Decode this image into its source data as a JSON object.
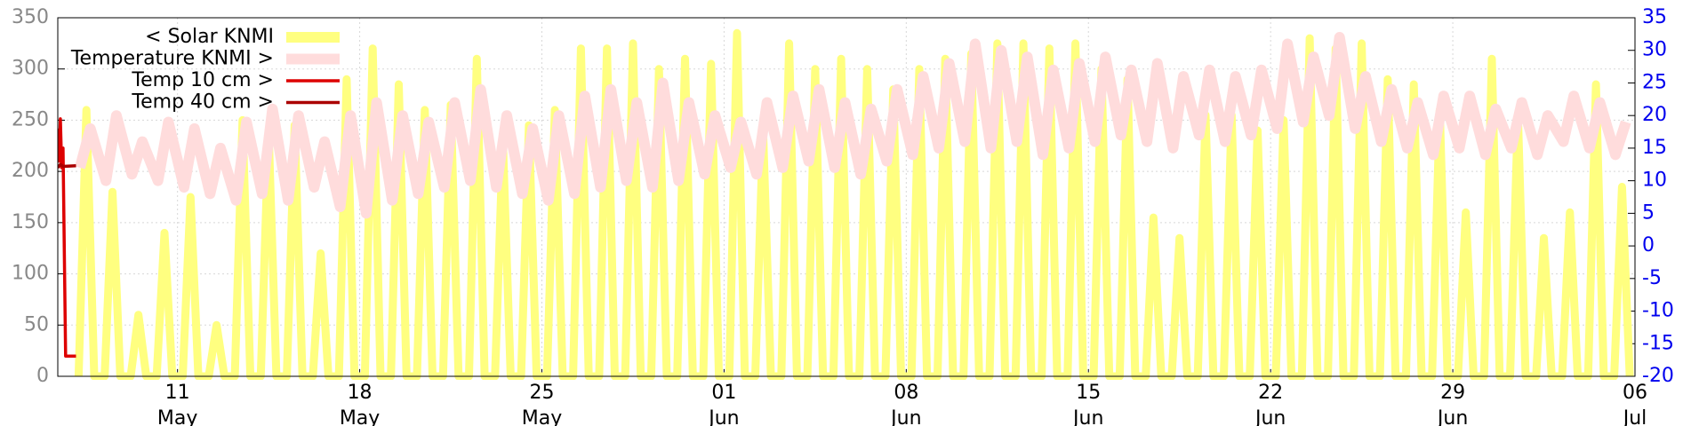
{
  "chart_data": {
    "type": "line",
    "grid": true,
    "legend": "upper left",
    "xlim": [
      6.4,
      67
    ],
    "xticks": [
      {
        "value": 11,
        "label": "11\nMay"
      },
      {
        "value": 18,
        "label": "18\nMay"
      },
      {
        "value": 25,
        "label": "25\nMay"
      },
      {
        "value": 32,
        "label": "01\nJun"
      },
      {
        "value": 39,
        "label": "08\nJun"
      },
      {
        "value": 46,
        "label": "15\nJun"
      },
      {
        "value": 53,
        "label": "22\nJun"
      },
      {
        "value": 60,
        "label": "29\nJun"
      },
      {
        "value": 67,
        "label": "06\nJul"
      }
    ],
    "ylim": [
      0,
      350
    ],
    "yticks": [
      0,
      50,
      100,
      150,
      200,
      250,
      300,
      350
    ],
    "y2lim": [
      -20,
      35
    ],
    "y2ticks": [
      -20,
      -15,
      -10,
      -5,
      0,
      5,
      10,
      15,
      20,
      25,
      30,
      35
    ],
    "series": [
      {
        "name": "< Solar KNMI",
        "color": "#ffff80",
        "axis": "y",
        "x": [
          7.2,
          7.5,
          7.8,
          8.2,
          8.5,
          8.8,
          9.2,
          9.5,
          9.8,
          10.2,
          10.5,
          10.8,
          11.2,
          11.5,
          11.8,
          12.2,
          12.5,
          12.8,
          13.2,
          13.5,
          13.8,
          14.2,
          14.5,
          14.8,
          15.2,
          15.5,
          15.8,
          16.2,
          16.5,
          16.8,
          17.2,
          17.5,
          17.8,
          18.2,
          18.5,
          18.8,
          19.2,
          19.5,
          19.8,
          20.2,
          20.5,
          20.8,
          21.2,
          21.5,
          21.8,
          22.2,
          22.5,
          22.8,
          23.2,
          23.5,
          23.8,
          24.2,
          24.5,
          24.8,
          25.2,
          25.5,
          25.8,
          26.2,
          26.5,
          26.8,
          27.2,
          27.5,
          27.8,
          28.2,
          28.5,
          28.8,
          29.2,
          29.5,
          29.8,
          30.2,
          30.5,
          30.8,
          31.2,
          31.5,
          31.8,
          32.2,
          32.5,
          32.8,
          33.2,
          33.5,
          33.8,
          34.2,
          34.5,
          34.8,
          35.2,
          35.5,
          35.8,
          36.2,
          36.5,
          36.8,
          37.2,
          37.5,
          37.8,
          38.2,
          38.5,
          38.8,
          39.2,
          39.5,
          39.8,
          40.2,
          40.5,
          40.8,
          41.2,
          41.5,
          41.8,
          42.2,
          42.5,
          42.8,
          43.2,
          43.5,
          43.8,
          44.2,
          44.5,
          44.8,
          45.2,
          45.5,
          45.8,
          46.2,
          46.5,
          46.8,
          47.2,
          47.5,
          47.8,
          48.2,
          48.5,
          48.8,
          49.2,
          49.5,
          49.8,
          50.2,
          50.5,
          50.8,
          51.2,
          51.5,
          51.8,
          52.2,
          52.5,
          52.8,
          53.2,
          53.5,
          53.8,
          54.2,
          54.5,
          54.8,
          55.2,
          55.5,
          55.8,
          56.2,
          56.5,
          56.8,
          57.2,
          57.5,
          57.8,
          58.2,
          58.5,
          58.8,
          59.2,
          59.5,
          59.8,
          60.2,
          60.5,
          60.8,
          61.2,
          61.5,
          61.8,
          62.2,
          62.5,
          62.8,
          63.2,
          63.5,
          63.8,
          64.2,
          64.5,
          64.8,
          65.2,
          65.5,
          65.8,
          66.2,
          66.5,
          66.8
        ],
        "values": [
          0,
          260,
          0,
          0,
          180,
          0,
          0,
          60,
          0,
          0,
          140,
          0,
          0,
          175,
          0,
          0,
          50,
          0,
          0,
          250,
          0,
          0,
          240,
          0,
          0,
          245,
          0,
          0,
          120,
          0,
          0,
          290,
          0,
          0,
          320,
          0,
          0,
          285,
          0,
          0,
          260,
          0,
          0,
          265,
          0,
          0,
          310,
          0,
          0,
          230,
          0,
          0,
          245,
          0,
          0,
          260,
          0,
          0,
          320,
          0,
          0,
          320,
          0,
          0,
          325,
          0,
          0,
          300,
          0,
          0,
          310,
          0,
          0,
          305,
          0,
          0,
          335,
          0,
          0,
          240,
          0,
          0,
          325,
          0,
          0,
          300,
          0,
          0,
          310,
          0,
          0,
          300,
          0,
          0,
          280,
          0,
          0,
          300,
          0,
          0,
          310,
          0,
          0,
          315,
          0,
          0,
          325,
          0,
          0,
          325,
          0,
          0,
          320,
          0,
          0,
          325,
          0,
          0,
          300,
          0,
          0,
          290,
          0,
          0,
          155,
          0,
          0,
          135,
          0,
          0,
          255,
          0,
          0,
          255,
          0,
          0,
          240,
          0,
          0,
          250,
          0,
          0,
          330,
          0,
          0,
          320,
          0,
          0,
          325,
          0,
          0,
          290,
          0,
          0,
          285,
          0,
          0,
          260,
          0,
          0,
          160,
          0,
          0,
          310,
          0,
          0,
          255,
          0,
          0,
          135,
          0,
          0,
          160,
          0,
          0,
          285,
          0,
          0,
          185,
          0
        ]
      },
      {
        "name": "Temperature KNMI >",
        "color": "#ffdcdc",
        "axis": "y2",
        "x": [
          7.25,
          7.65,
          8.25,
          8.65,
          9.25,
          9.65,
          10.25,
          10.65,
          11.25,
          11.65,
          12.25,
          12.65,
          13.25,
          13.65,
          14.25,
          14.65,
          15.25,
          15.65,
          16.25,
          16.65,
          17.25,
          17.65,
          18.25,
          18.65,
          19.25,
          19.65,
          20.25,
          20.65,
          21.25,
          21.65,
          22.25,
          22.65,
          23.25,
          23.65,
          24.25,
          24.65,
          25.25,
          25.65,
          26.25,
          26.65,
          27.25,
          27.65,
          28.25,
          28.65,
          29.25,
          29.65,
          30.25,
          30.65,
          31.25,
          31.65,
          32.25,
          32.65,
          33.25,
          33.65,
          34.25,
          34.65,
          35.25,
          35.65,
          36.25,
          36.65,
          37.25,
          37.65,
          38.25,
          38.65,
          39.25,
          39.65,
          40.25,
          40.65,
          41.25,
          41.65,
          42.25,
          42.65,
          43.25,
          43.65,
          44.25,
          44.65,
          45.25,
          45.65,
          46.25,
          46.65,
          47.25,
          47.65,
          48.25,
          48.65,
          49.25,
          49.65,
          50.25,
          50.65,
          51.25,
          51.65,
          52.25,
          52.65,
          53.25,
          53.65,
          54.25,
          54.65,
          55.25,
          55.65,
          56.25,
          56.65,
          57.25,
          57.65,
          58.25,
          58.65,
          59.25,
          59.65,
          60.25,
          60.65,
          61.25,
          61.65,
          62.25,
          62.65,
          63.25,
          63.65,
          64.25,
          64.65,
          65.25,
          65.65,
          66.25,
          66.65
        ],
        "values": [
          12,
          18,
          10,
          20,
          11,
          16,
          10,
          19,
          9,
          18,
          8,
          15,
          7,
          19,
          8,
          21,
          7,
          20,
          9,
          16,
          6,
          20,
          5,
          22,
          7,
          20,
          8,
          19,
          9,
          22,
          10,
          24,
          9,
          20,
          8,
          18,
          7,
          20,
          8,
          23,
          9,
          24,
          10,
          22,
          9,
          25,
          10,
          22,
          11,
          20,
          12,
          19,
          11,
          22,
          12,
          23,
          13,
          24,
          12,
          22,
          11,
          21,
          13,
          24,
          14,
          26,
          15,
          28,
          16,
          31,
          15,
          30,
          16,
          29,
          14,
          27,
          15,
          28,
          16,
          29,
          17,
          27,
          16,
          28,
          15,
          26,
          17,
          27,
          16,
          26,
          17,
          27,
          18,
          31,
          19,
          29,
          20,
          32,
          18,
          26,
          16,
          24,
          15,
          22,
          14,
          23,
          15,
          23,
          14,
          21,
          15,
          22,
          14,
          20,
          16,
          23,
          15,
          22,
          14,
          19
        ]
      },
      {
        "name": "Temp 10 cm >",
        "color": "#dd0000",
        "axis": "y2",
        "x": [
          6.4,
          6.45,
          6.5,
          6.55,
          6.6,
          6.7,
          7.1
        ],
        "values": [
          18,
          13,
          19.5,
          12,
          15,
          -16.9,
          -16.9
        ]
      },
      {
        "name": "Temp 40 cm >",
        "color": "#aa0000",
        "axis": "y2",
        "x": [
          6.4,
          6.5,
          6.6,
          7.1
        ],
        "values": [
          12,
          12.5,
          12.2,
          12.3
        ]
      }
    ]
  }
}
